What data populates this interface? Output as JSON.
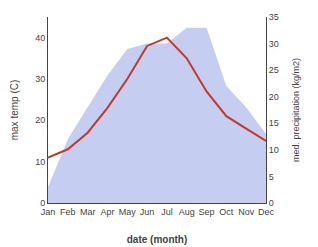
{
  "chart_data": {
    "type": "line",
    "xlabel": "date (month)",
    "ylabel": "max temp (C)",
    "y2label": "med. precipitation (kg/m2)",
    "categories": [
      "Jan",
      "Feb",
      "Mar",
      "Apr",
      "May",
      "Jun",
      "Jul",
      "Aug",
      "Sep",
      "Oct",
      "Nov",
      "Dec"
    ],
    "series": [
      {
        "type": "area",
        "axis": "y2",
        "color": "#c5cef0",
        "values": [
          3,
          12,
          18,
          24,
          29,
          30,
          30,
          33,
          33,
          22,
          18,
          13
        ]
      },
      {
        "type": "line",
        "color": "#c0392b",
        "values": [
          11,
          13,
          17,
          23,
          30,
          38,
          40,
          35,
          27,
          21,
          18,
          15
        ]
      }
    ],
    "ylim": [
      0,
      45
    ],
    "yticks": [
      0,
      10,
      20,
      30,
      40
    ],
    "y2lim": [
      0,
      35
    ],
    "y2ticks": [
      0,
      5,
      10,
      15,
      20,
      25,
      30,
      35
    ],
    "grid": false
  }
}
